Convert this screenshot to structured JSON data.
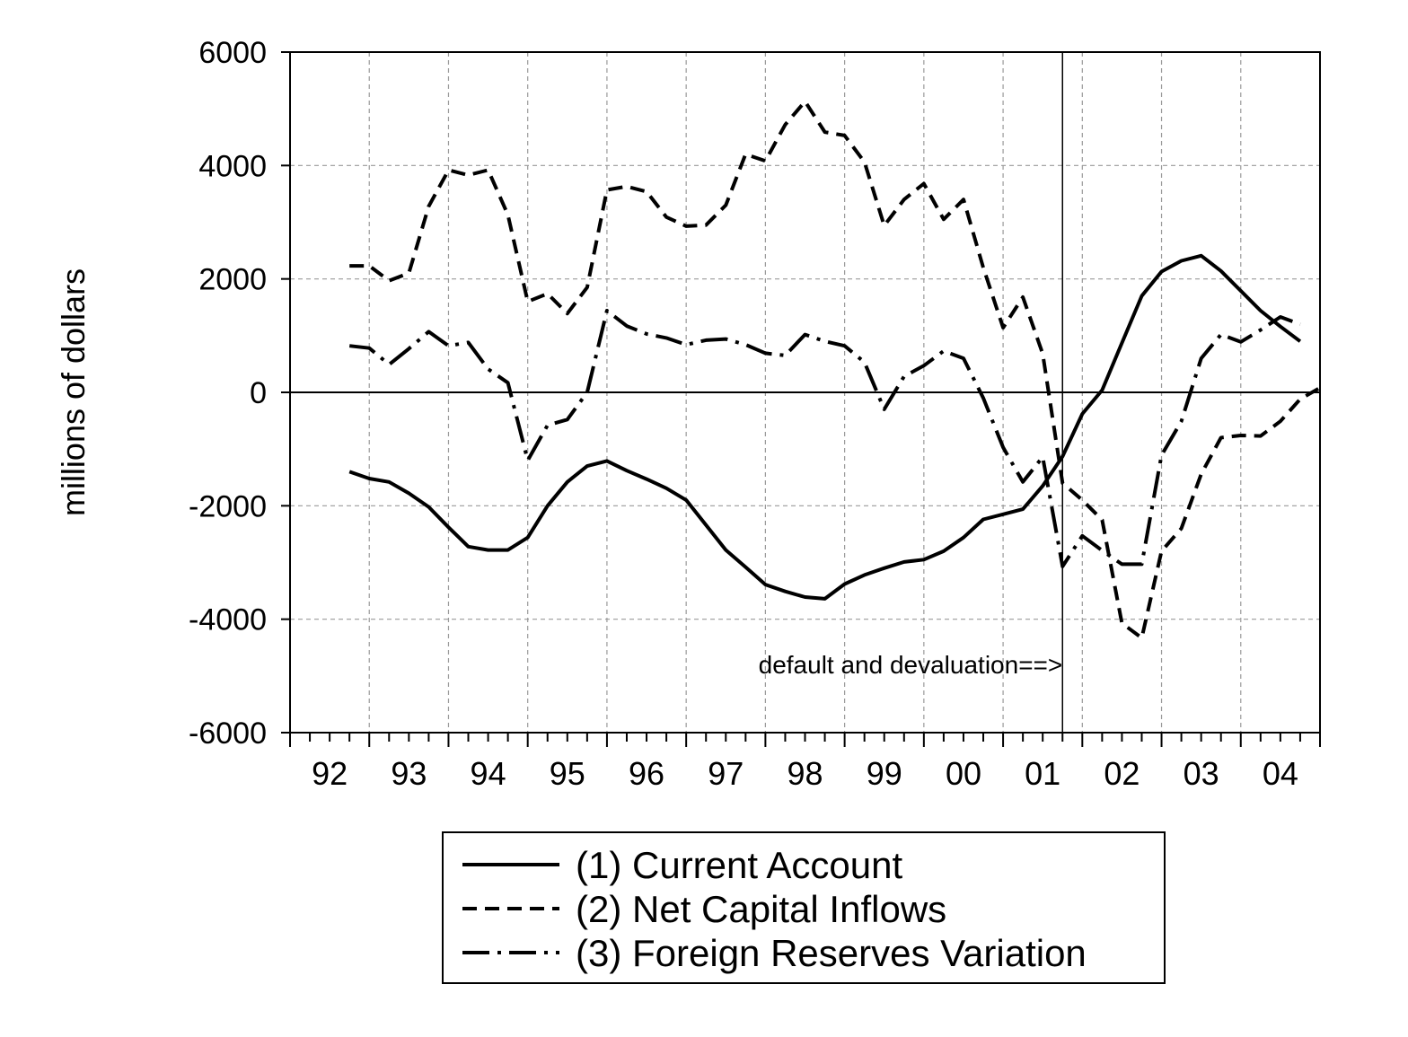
{
  "chart_data": {
    "type": "line",
    "ylabel": "millions of dollars",
    "xlabel": "",
    "ylim": [
      -6000,
      6000
    ],
    "yticks": [
      "6000",
      "4000",
      "2000",
      "0",
      "-2000",
      "-4000",
      "-6000"
    ],
    "ytick_values": [
      6000,
      4000,
      2000,
      0,
      -2000,
      -4000,
      -6000
    ],
    "categories": [
      "92",
      "93",
      "94",
      "95",
      "96",
      "97",
      "98",
      "99",
      "00",
      "01",
      "02",
      "03",
      "04"
    ],
    "grid": true,
    "legend_position": "bottom-center",
    "annotation": "default and devaluation==>",
    "annotation_x": 2001.75,
    "x": [
      1992.75,
      1993.0,
      1993.25,
      1993.5,
      1993.75,
      1994.0,
      1994.25,
      1994.5,
      1994.75,
      1995.0,
      1995.25,
      1995.5,
      1995.75,
      1996.0,
      1996.25,
      1996.5,
      1996.75,
      1997.0,
      1997.25,
      1997.5,
      1997.75,
      1998.0,
      1998.25,
      1998.5,
      1998.75,
      1999.0,
      1999.25,
      1999.5,
      1999.75,
      2000.0,
      2000.25,
      2000.5,
      2000.75,
      2001.0,
      2001.25,
      2001.5,
      2001.75,
      2002.0,
      2002.25,
      2002.5,
      2002.75,
      2003.0,
      2003.25,
      2003.5,
      2003.75,
      2004.0,
      2004.25,
      2004.5,
      2004.75,
      2005.0
    ],
    "series": [
      {
        "name": "(1) Current Account",
        "style": "solid",
        "values": [
          -1400,
          -1520,
          -1580,
          -1780,
          -2020,
          -2380,
          -2720,
          -2780,
          -2780,
          -2560,
          -2000,
          -1580,
          -1300,
          -1210,
          -1380,
          -1530,
          -1690,
          -1900,
          -2340,
          -2780,
          -3080,
          -3390,
          -3510,
          -3610,
          -3640,
          -3380,
          -3220,
          -3100,
          -2990,
          -2950,
          -2800,
          -2560,
          -2240,
          -2150,
          -2060,
          -1650,
          -1130,
          -380,
          40,
          870,
          1700,
          2130,
          2320,
          2410,
          2140,
          1790,
          1440,
          1160,
          900,
          null
        ]
      },
      {
        "name": "(2) Net Capital Inflows",
        "style": "dashed",
        "values": [
          2230,
          2230,
          1970,
          2100,
          3280,
          3920,
          3830,
          3920,
          3130,
          1600,
          1740,
          1390,
          1850,
          3570,
          3630,
          3540,
          3090,
          2930,
          2950,
          3300,
          4200,
          4080,
          4720,
          5130,
          4590,
          4530,
          4060,
          2940,
          3400,
          3680,
          3050,
          3400,
          2200,
          1140,
          1680,
          680,
          -1600,
          -1900,
          -2250,
          -4070,
          -4330,
          -2800,
          -2400,
          -1440,
          -800,
          -760,
          -770,
          -510,
          -120,
          80
        ]
      },
      {
        "name": "(3) Foreign Reserves Variation",
        "style": "dashdot",
        "values": [
          820,
          780,
          490,
          770,
          1070,
          820,
          880,
          410,
          170,
          -1200,
          -580,
          -480,
          0,
          1440,
          1170,
          1030,
          960,
          840,
          920,
          940,
          840,
          690,
          650,
          1020,
          900,
          820,
          530,
          -300,
          280,
          470,
          730,
          600,
          -100,
          -970,
          -1580,
          -1140,
          -3070,
          -2530,
          -2790,
          -3030,
          -3030,
          -1110,
          -510,
          600,
          1020,
          890,
          1100,
          1330,
          1200,
          null
        ]
      }
    ]
  }
}
